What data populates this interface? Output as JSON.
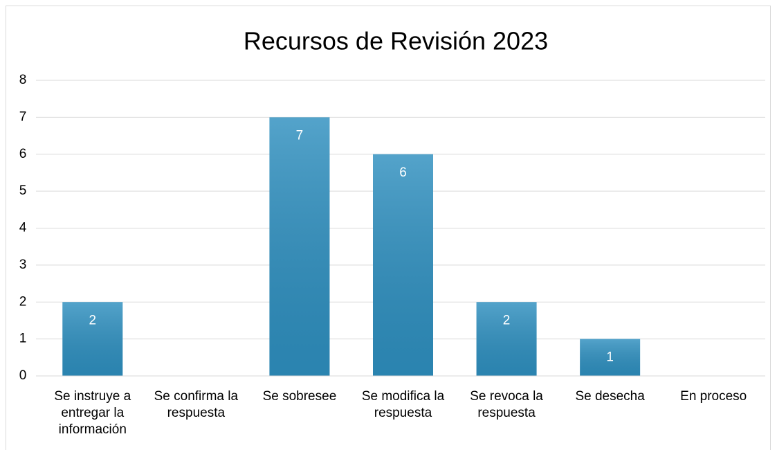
{
  "chart_data": {
    "type": "bar",
    "title": "Recursos de Revisión 2023",
    "categories": [
      "Se instruye a entregar la información",
      "Se confirma la respuesta",
      "Se sobresee",
      "Se modifica la respuesta",
      "Se revoca la respuesta",
      "Se desecha",
      "En proceso"
    ],
    "values": [
      2,
      0,
      7,
      6,
      2,
      1,
      0
    ],
    "color": "#2e8fbf",
    "ylim": [
      0,
      8
    ],
    "yticks": [
      0,
      1,
      2,
      3,
      4,
      5,
      6,
      7,
      8
    ],
    "grid": true
  }
}
